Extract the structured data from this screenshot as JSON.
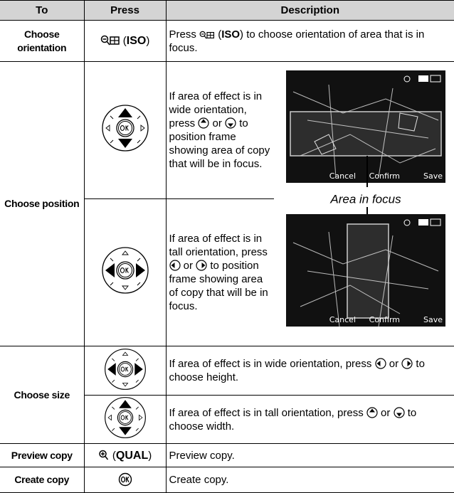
{
  "header": {
    "to": "To",
    "press": "Press",
    "description": "Description"
  },
  "rows": [
    {
      "to": "Choose orientation",
      "press": [
        "(",
        "ISO",
        ")"
      ],
      "description": [
        "Press",
        "(",
        "ISO",
        ")",
        "to choose orientation of area that is in focus."
      ]
    },
    {
      "to": "Choose position",
      "steps": [
        {
          "description": [
            "If area of effect is in wide orientation, press",
            "or",
            "to position frame showing area of copy that will be in focus."
          ]
        },
        {
          "description": [
            "If area of effect is in tall orientation, press",
            "or",
            "to position frame showing area of copy that will be in focus."
          ]
        }
      ],
      "figure": {
        "caption": "Area in focus",
        "screens": [
          {
            "cancel": "Cancel",
            "confirm": "Confirm",
            "save": "Save"
          },
          {
            "cancel": "Cancel",
            "confirm": "Confirm",
            "save": "Save"
          }
        ]
      }
    },
    {
      "to": "Choose size",
      "steps": [
        {
          "description": [
            "If area of effect is in wide orientation, press",
            "or",
            "to choose height."
          ]
        },
        {
          "description": [
            "If area of effect is in tall orientation, press",
            "or",
            "to choose width."
          ]
        }
      ]
    },
    {
      "to": "Preview copy",
      "press": [
        "(",
        "QUAL",
        ")"
      ],
      "description": [
        "Preview copy."
      ]
    },
    {
      "to": "Create copy",
      "description": [
        "Create copy."
      ]
    }
  ]
}
